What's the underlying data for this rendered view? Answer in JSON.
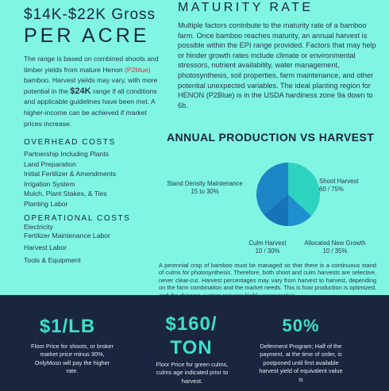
{
  "left": {
    "gross_title": "$14K-$22K Gross",
    "per_acre": "PER ACRE",
    "range_text_1": "The range is based on combined shoots and timber yields from mature Henon ",
    "range_red": "(P2blue)",
    "range_text_2": " bamboo. Harvest yields may vary, with more potential in the ",
    "range_bold": "$24K",
    "range_text_3": " range if all conditions and applicable guidelines have been met. A higher-income can be achieved if market prices increase.",
    "overhead_heading": "OVERHEAD COSTS",
    "overhead_items": [
      "Partnership Including Plants",
      "Land Preparation",
      "Initial Fertilizer & Amendments",
      "Irrigation System",
      "Mulch, Plant Stakes, & Ties",
      "Planting Labor"
    ],
    "operational_heading": "OPERATIONAL COSTS",
    "operational_items": [
      "Electricity",
      "Fertilizer Maintenance Labor",
      "Harvest Labor",
      "Tools & Equipment"
    ]
  },
  "maturity": {
    "title": "MATURITY RATE",
    "text": "Multiple factors contribute to the maturity rate of a bamboo farm. Once bamboo reaches maturity, an annual harvest is possible within the EPI range provided. Factors that may help or hinder growth rates include climate or environmental stressors, nutrient availability, water management, photosynthesis, soil properties, farm maintenance, and other potential unexpected variables. The ideal planting region for HENON (P2Blue) is in the USDA hardiness zone 9a down to 6b."
  },
  "annual": {
    "title": "ANNUAL PRODUCTION VS HARVEST",
    "crop_text": "A perennial crop of bamboo must be managed so that there is a continuous stand of culms for photosynthesis. Therefore, both shoot and culm harvests are selective, never clear-cut. Harvest percentages may vary from harvest to harvest, depending on the farm combination and the market needs. This is how production is optimized, and the rhizome system remains highly regenerative."
  },
  "chart_data": {
    "type": "pie",
    "slices": [
      {
        "name": "Shoot Harvest",
        "range": "60 / 75%",
        "value": 37
      },
      {
        "name": "Allocated New Growth",
        "range": "10 / 35%",
        "value": 13
      },
      {
        "name": "Culm Harvest",
        "range": "10 / 30%",
        "value": 14
      },
      {
        "name": "Stand Density Maintenance",
        "range": "15 to 30%",
        "value": 36
      }
    ],
    "colors": [
      "#2ed3c0",
      "#1f8fcf",
      "#1673b8",
      "#1b86c6"
    ]
  },
  "footer": {
    "price1": "$1/LB",
    "price1_text": "Floor Price for shoots, or broker market price minus 30%, OnlyMoso will pay the higher rate.",
    "price2": "$160/ TON",
    "price2_text": "Floor Price for green culms, culms age indicated prior to harvest.",
    "price3": "50%",
    "price3_text": "Deferment Program; Half of the payment, at the time of order, is postponed until first available harvest yield of equivalent value is"
  }
}
